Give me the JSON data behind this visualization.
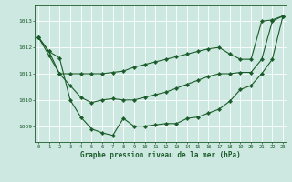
{
  "title": "Graphe pression niveau de la mer (hPa)",
  "bg_color": "#cce8e0",
  "line_color": "#1a5c2a",
  "grid_color": "#ffffff",
  "ylim": [
    1008.4,
    1013.6
  ],
  "xlim": [
    -0.3,
    23.3
  ],
  "yticks": [
    1009,
    1010,
    1011,
    1012,
    1013
  ],
  "xticks": [
    0,
    1,
    2,
    3,
    4,
    5,
    6,
    7,
    8,
    9,
    10,
    11,
    12,
    13,
    14,
    15,
    16,
    17,
    18,
    19,
    20,
    21,
    22,
    23
  ],
  "line1_x": [
    0,
    1,
    2,
    3,
    4,
    5,
    6,
    7,
    8,
    9,
    10,
    11,
    12,
    13,
    14,
    15,
    16,
    17,
    18,
    19,
    20,
    21,
    22,
    23
  ],
  "line1_y": [
    1012.4,
    1011.85,
    1011.0,
    1011.0,
    1011.0,
    1011.0,
    1011.0,
    1011.05,
    1011.1,
    1011.25,
    1011.35,
    1011.45,
    1011.55,
    1011.65,
    1011.75,
    1011.85,
    1011.95,
    1012.0,
    1011.75,
    1011.55,
    1011.55,
    1013.0,
    1013.05,
    1013.2
  ],
  "line2_x": [
    0,
    1,
    2,
    3,
    4,
    5,
    6,
    7,
    8,
    9,
    10,
    11,
    12,
    13,
    14,
    15,
    16,
    17,
    18,
    19,
    20,
    21,
    22,
    23
  ],
  "line2_y": [
    1012.4,
    1011.7,
    1011.0,
    1010.55,
    1010.1,
    1009.9,
    1010.0,
    1010.05,
    1010.0,
    1010.0,
    1010.1,
    1010.2,
    1010.3,
    1010.45,
    1010.6,
    1010.75,
    1010.9,
    1011.0,
    1011.0,
    1011.05,
    1011.05,
    1011.55,
    1013.0,
    1013.2
  ],
  "line3_x": [
    0,
    1,
    2,
    3,
    4,
    5,
    6,
    7,
    8,
    9,
    10,
    11,
    12,
    13,
    14,
    15,
    16,
    17,
    18,
    19,
    20,
    21,
    22,
    23
  ],
  "line3_y": [
    1012.4,
    1011.85,
    1011.6,
    1010.0,
    1009.35,
    1008.9,
    1008.75,
    1008.65,
    1009.3,
    1009.0,
    1009.0,
    1009.05,
    1009.1,
    1009.1,
    1009.3,
    1009.35,
    1009.5,
    1009.65,
    1009.95,
    1010.4,
    1010.55,
    1011.0,
    1011.55,
    1013.2
  ]
}
